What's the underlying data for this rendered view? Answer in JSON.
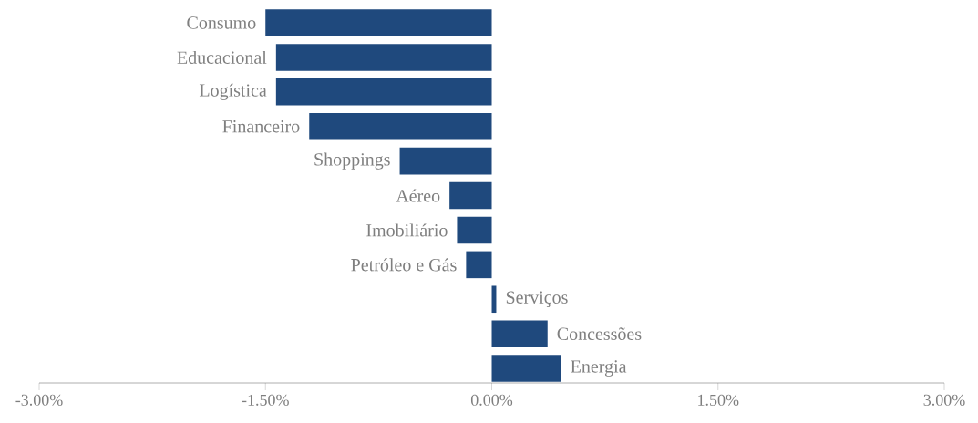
{
  "chart_data": {
    "type": "bar",
    "orientation": "horizontal",
    "categories": [
      "Consumo",
      "Educacional",
      "Logística",
      "Financeiro",
      "Shoppings",
      "Aéreo",
      "Imobiliário",
      "Petróleo e Gás",
      "Serviços",
      "Concessões",
      "Energia"
    ],
    "values": [
      -1.5,
      -1.43,
      -1.43,
      -1.21,
      -0.61,
      -0.28,
      -0.23,
      -0.17,
      0.03,
      0.37,
      0.46
    ],
    "color": "#1f497d",
    "xlim": [
      -3,
      3
    ],
    "xticks": [
      {
        "value": -3,
        "label": "-3.00%"
      },
      {
        "value": -1.5,
        "label": "-1.50%"
      },
      {
        "value": 0,
        "label": "0.00%"
      },
      {
        "value": 1.5,
        "label": "1.50%"
      },
      {
        "value": 3,
        "label": "3.00%"
      }
    ]
  }
}
